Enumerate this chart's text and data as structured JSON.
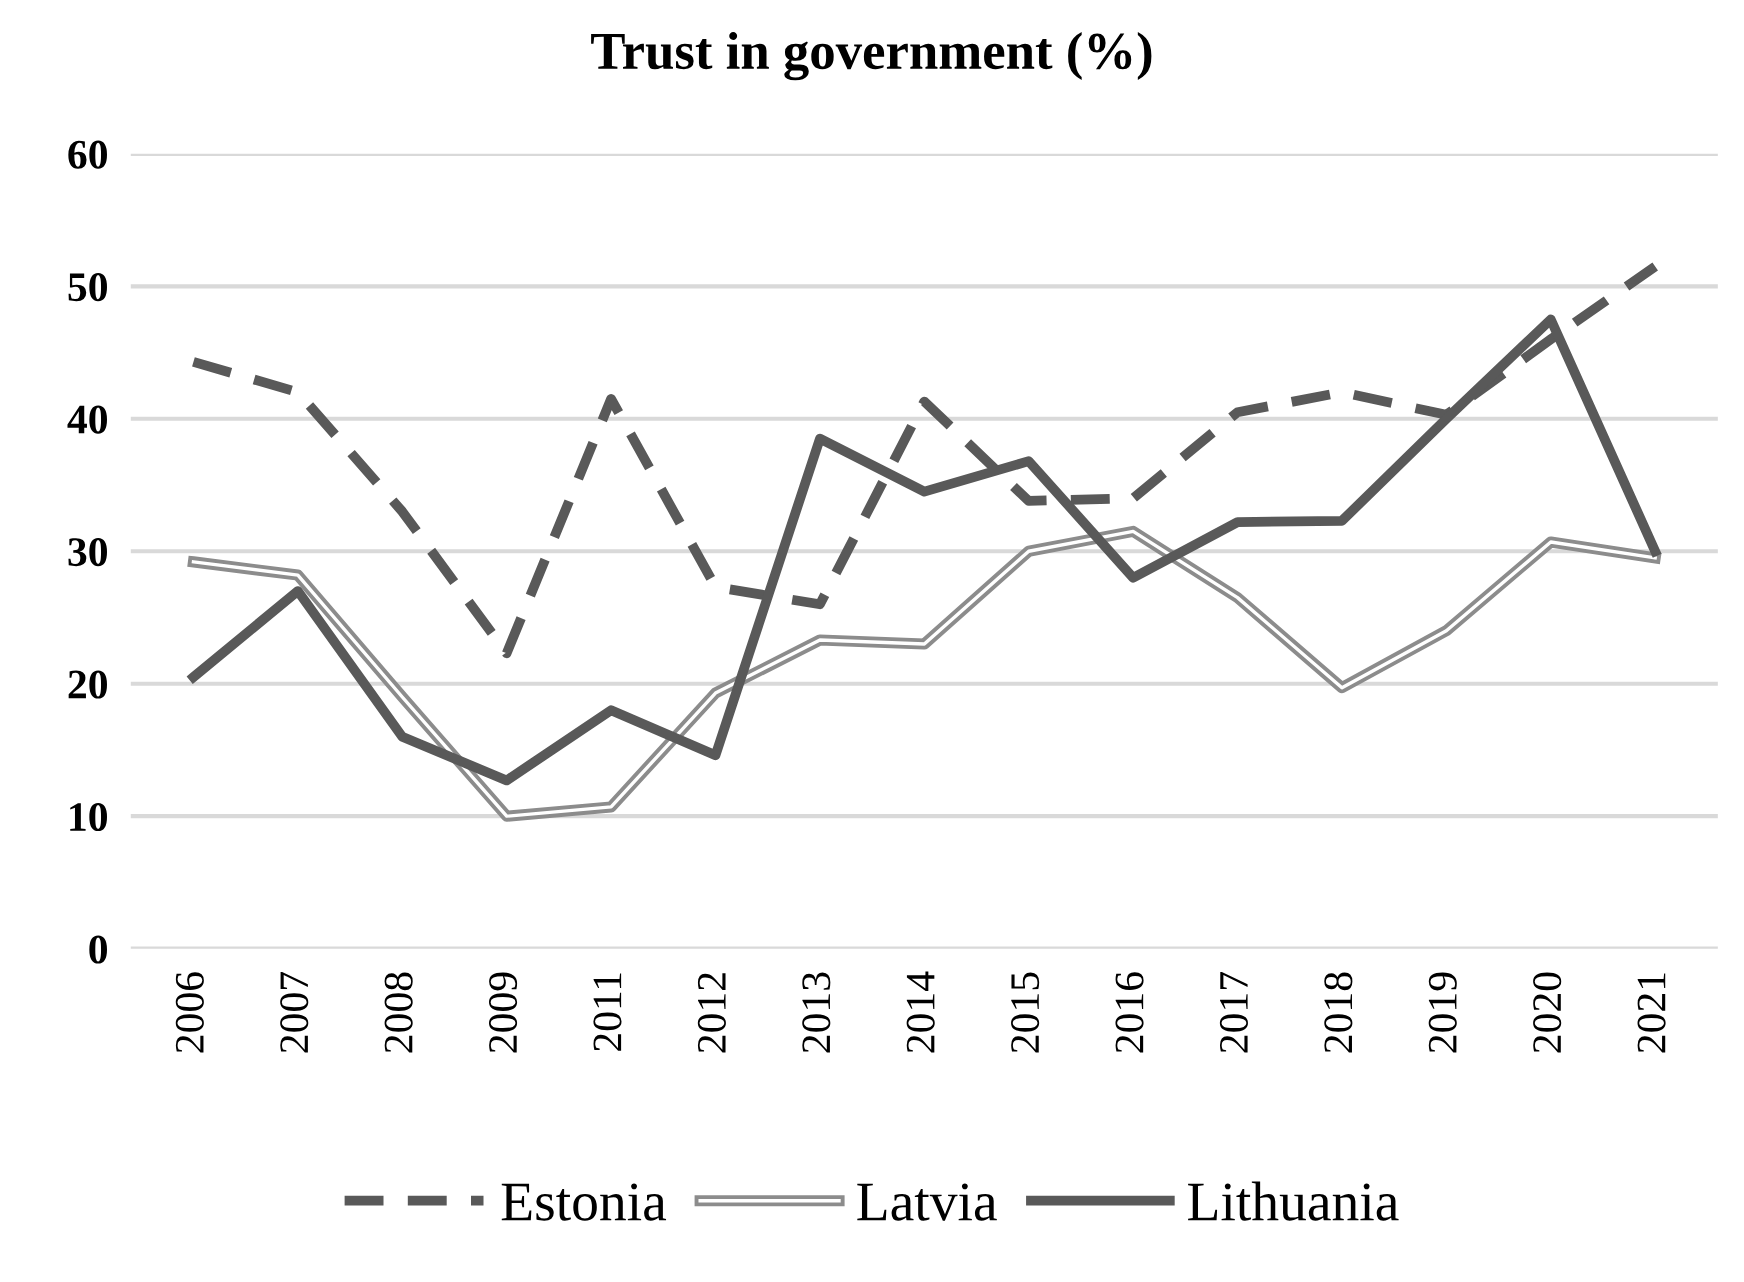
{
  "chart_data": {
    "type": "line",
    "title": "Trust in government (%)",
    "categories": [
      "2006",
      "2007",
      "2008",
      "2009",
      "2011",
      "2012",
      "2013",
      "2014",
      "2015",
      "2016",
      "2017",
      "2018",
      "2019",
      "2020",
      "2021"
    ],
    "series": [
      {
        "name": "Estonia",
        "color": "#595959",
        "line_style": "dashed",
        "values": [
          44.3,
          42,
          33,
          22.3,
          41.5,
          27.3,
          26,
          41.3,
          33.8,
          34,
          40.5,
          42,
          40.3,
          46,
          51.5
        ]
      },
      {
        "name": "Latvia",
        "color": "#8c8c8c",
        "line_style": "solid",
        "values": [
          29.2,
          28.2,
          19,
          10,
          10.7,
          19.3,
          23.3,
          23,
          30,
          31.5,
          26.5,
          19.7,
          24,
          30.7,
          29.5
        ]
      },
      {
        "name": "Lithuania",
        "color": "#595959",
        "line_style": "solid",
        "values": [
          20.5,
          27,
          16,
          12.7,
          18,
          14.6,
          38.5,
          34.5,
          36.8,
          28,
          32.2,
          32.3,
          40,
          47.5,
          30
        ]
      }
    ],
    "ylim": [
      0,
      60
    ],
    "yticks": [
      0,
      10,
      20,
      30,
      40,
      50,
      60
    ],
    "grid": "y",
    "legend": "bottom",
    "marker": "none"
  }
}
